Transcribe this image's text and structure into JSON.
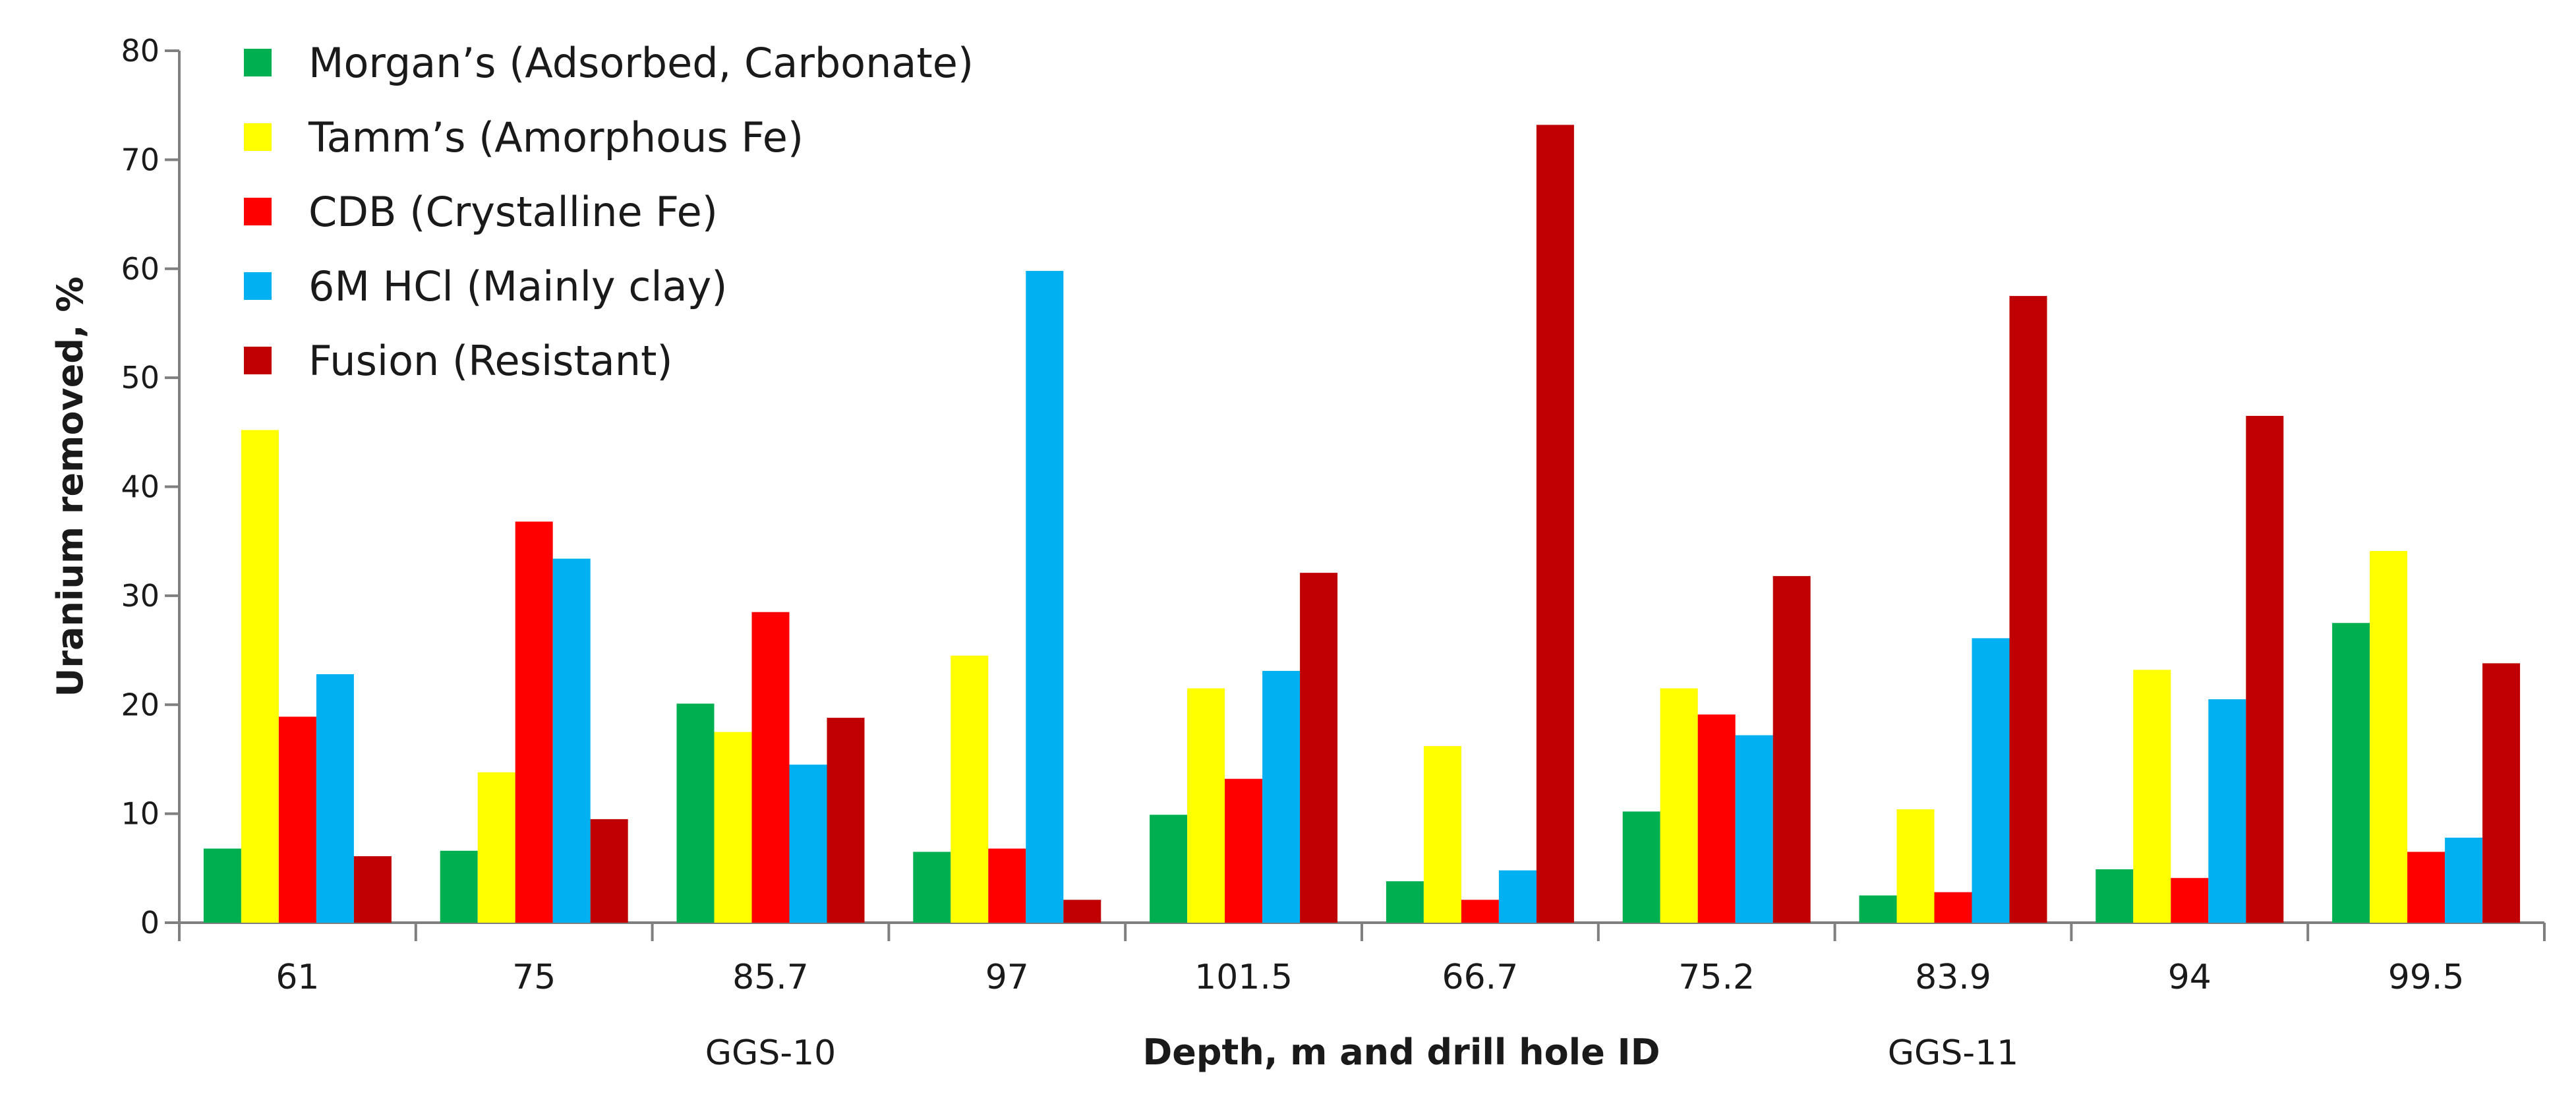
{
  "chart_data": {
    "type": "bar",
    "title": "",
    "xlabel": "Depth, m and drill hole ID",
    "ylabel": "Uranium removed, %",
    "ylim": [
      0,
      80
    ],
    "yticks": [
      0,
      10,
      20,
      30,
      40,
      50,
      60,
      70,
      80
    ],
    "ytick_labels": [
      "0",
      "10",
      "20",
      "30",
      "40",
      "50",
      "60",
      "70",
      "80"
    ],
    "categories": [
      "61",
      "75",
      "85.7",
      "97",
      "101.5",
      "66.7",
      "75.2",
      "83.9",
      "94",
      "99.5"
    ],
    "groups": [
      {
        "label": "GGS-10",
        "categories": [
          "61",
          "75",
          "85.7",
          "97",
          "101.5"
        ]
      },
      {
        "label": "GGS-11",
        "categories": [
          "66.7",
          "75.2",
          "83.9",
          "94",
          "99.5"
        ]
      }
    ],
    "legend_position": "top-left",
    "series": [
      {
        "name": "Morgan’s (Adsorbed, Carbonate)",
        "color": "#00b050",
        "values": [
          6.8,
          6.6,
          20.1,
          6.5,
          9.9,
          3.8,
          10.2,
          2.5,
          4.9,
          27.5
        ]
      },
      {
        "name": "Tamm’s (Amorphous Fe)",
        "color": "#ffff00",
        "values": [
          45.2,
          13.8,
          17.5,
          24.5,
          21.5,
          16.2,
          21.5,
          10.4,
          23.2,
          34.1
        ]
      },
      {
        "name": "CDB (Crystalline Fe)",
        "color": "#ff0000",
        "values": [
          18.9,
          36.8,
          28.5,
          6.8,
          13.2,
          2.1,
          19.1,
          2.8,
          4.1,
          6.5
        ]
      },
      {
        "name": "6M HCl (Mainly clay)",
        "color": "#00b0f0",
        "values": [
          22.8,
          33.4,
          14.5,
          59.8,
          23.1,
          4.8,
          17.2,
          26.1,
          20.5,
          7.8
        ]
      },
      {
        "name": "Fusion (Resistant)",
        "color": "#c00000",
        "values": [
          6.1,
          9.5,
          18.8,
          2.1,
          32.1,
          73.2,
          31.8,
          57.5,
          46.5,
          23.8
        ]
      }
    ]
  }
}
